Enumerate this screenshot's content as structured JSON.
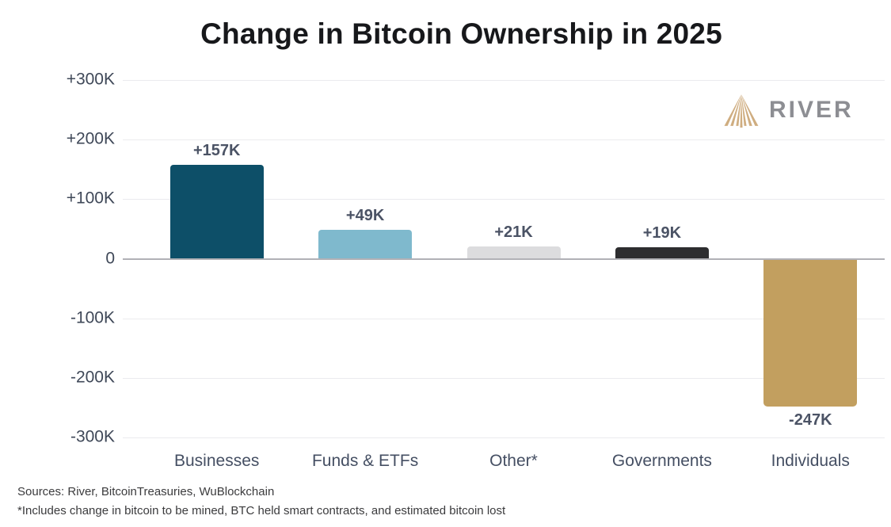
{
  "logo": {
    "text": "RIVER",
    "icon": "river-rays-icon",
    "icon_color": "#cfad80",
    "text_color": "#8d8e93"
  },
  "chart_data": {
    "type": "bar",
    "title": "Change in Bitcoin Ownership in 2025",
    "categories": [
      "Businesses",
      "Funds & ETFs",
      "Other*",
      "Governments",
      "Individuals"
    ],
    "values": [
      157000,
      49000,
      21000,
      19000,
      -247000
    ],
    "value_labels": [
      "+157K",
      "+49K",
      "+21K",
      "+19K",
      "-247K"
    ],
    "bar_colors": [
      "#0d4f68",
      "#7fb9cd",
      "#dcdcde",
      "#2d2d2f",
      "#c29f5f"
    ],
    "xlabel": "",
    "ylabel": "",
    "ylim": [
      -300000,
      300000
    ],
    "ytick_values": [
      300000,
      200000,
      100000,
      0,
      -100000,
      -200000,
      -300000
    ],
    "ytick_labels": [
      "+300K",
      "+200K",
      "+100K",
      "0",
      "-100K",
      "-200K",
      "-300K"
    ],
    "grid": true,
    "legend": "none"
  },
  "footer": {
    "sources": "Sources: River, BitcoinTreasuries, WuBlockchain",
    "note": "*Includes change in bitcoin to be mined, BTC held smart contracts, and estimated bitcoin lost"
  }
}
